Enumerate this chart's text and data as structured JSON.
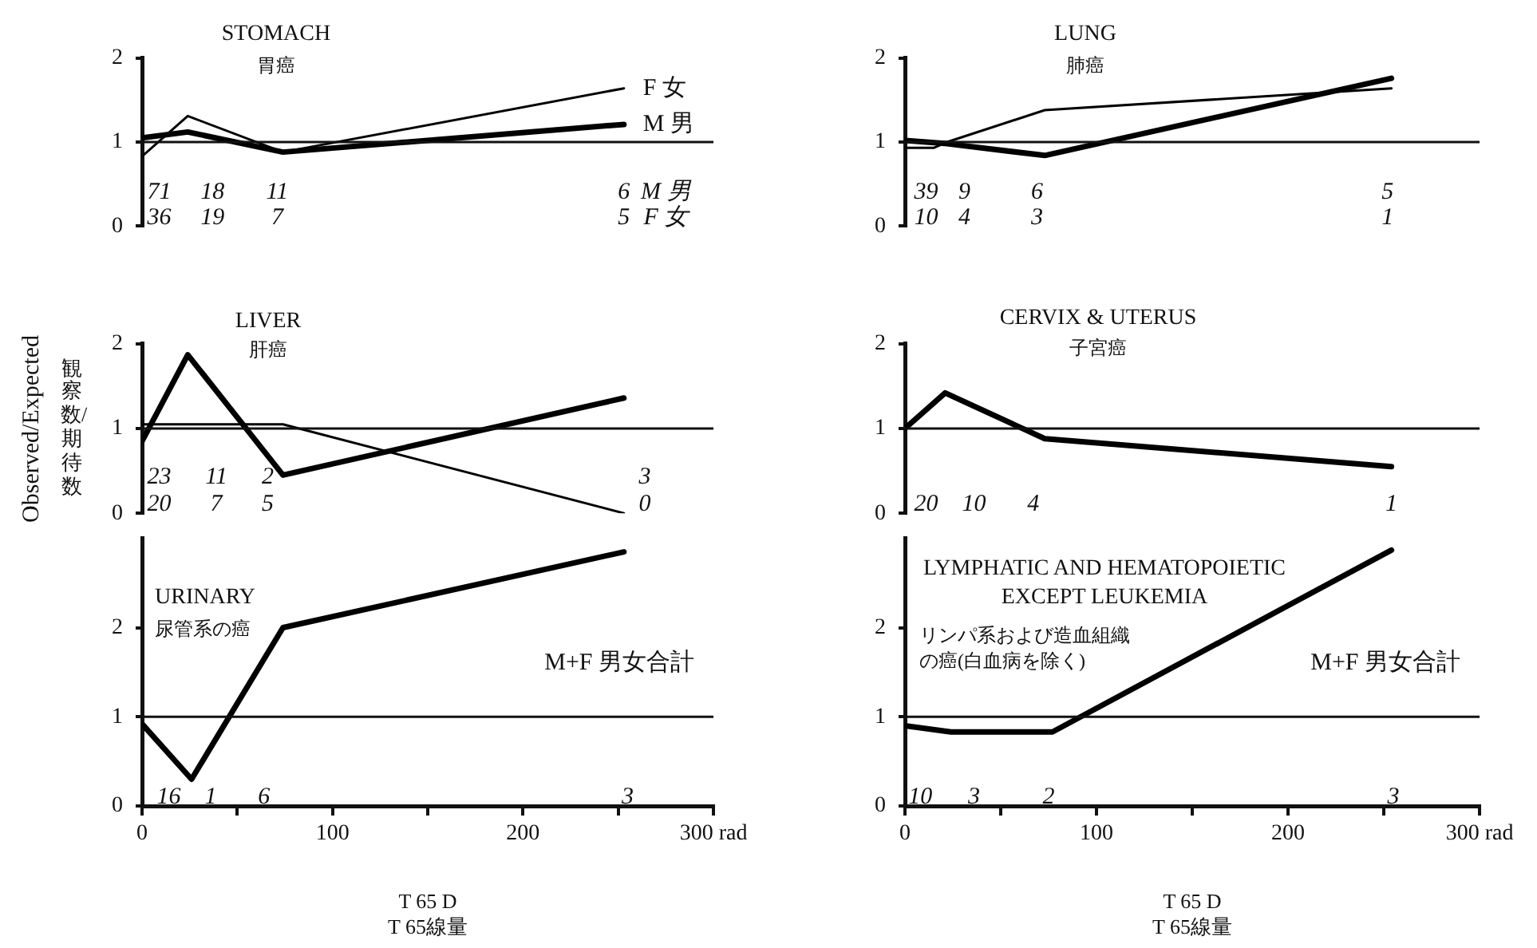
{
  "chart_data": [
    {
      "type": "line",
      "title": "STOMACH",
      "subtitle": "胃癌",
      "xlim": [
        0,
        300
      ],
      "ylim": [
        0,
        2
      ],
      "yticks": [
        0,
        1,
        2
      ],
      "tick_labels": "y",
      "ref_lines": [
        {
          "axis": "y",
          "value": 1
        }
      ],
      "series": [
        {
          "name": "M 男",
          "color": "#000000",
          "x": [
            0,
            24,
            74,
            253
          ],
          "values": [
            1.05,
            1.12,
            0.88,
            1.21
          ]
        },
        {
          "name": "F 女",
          "color": "#000000",
          "x": [
            0,
            24,
            74,
            253
          ],
          "values": [
            0.83,
            1.31,
            0.88,
            1.64
          ]
        }
      ],
      "annotations": [
        "71",
        "18",
        "11",
        "6",
        "M 男",
        "36",
        "19",
        "7",
        "5",
        "F 女"
      ]
    },
    {
      "type": "line",
      "title": "LUNG",
      "subtitle": "肺癌",
      "xlim": [
        0,
        300
      ],
      "ylim": [
        0,
        2
      ],
      "yticks": [
        0,
        1,
        2
      ],
      "tick_labels": "y",
      "ref_lines": [
        {
          "axis": "y",
          "value": 1
        }
      ],
      "series": [
        {
          "color": "#000000",
          "x": [
            0,
            22,
            73,
            254
          ],
          "values": [
            1.02,
            0.98,
            0.84,
            1.76
          ]
        },
        {
          "color": "#000000",
          "x": [
            0,
            15,
            22,
            73,
            254
          ],
          "values": [
            0.93,
            0.93,
            1.0,
            1.38,
            1.64
          ]
        }
      ],
      "annotations": [
        "39",
        "9",
        "6",
        "5",
        "10",
        "4",
        "3",
        "1"
      ]
    },
    {
      "type": "line",
      "title": "LIVER",
      "subtitle": "肝癌",
      "ylabel": "Observed/Expected\n観察数/期待数",
      "xlim": [
        0,
        300
      ],
      "ylim": [
        0,
        2
      ],
      "yticks": [
        0,
        1,
        2
      ],
      "tick_labels": "y",
      "ref_lines": [
        {
          "axis": "y",
          "value": 1
        }
      ],
      "series": [
        {
          "color": "#000000",
          "x": [
            0,
            24,
            74,
            253
          ],
          "values": [
            0.85,
            1.87,
            0.45,
            1.36
          ]
        },
        {
          "color": "#000000",
          "x": [
            0,
            74,
            253
          ],
          "values": [
            1.05,
            1.05,
            0
          ]
        }
      ],
      "annotations": [
        "23",
        "11",
        "2",
        "3",
        "20",
        "7",
        "5",
        "0"
      ]
    },
    {
      "type": "line",
      "title": "CERVIX & UTERUS",
      "subtitle": "子宮癌",
      "xlim": [
        0,
        300
      ],
      "ylim": [
        0,
        2
      ],
      "yticks": [
        0,
        1,
        2
      ],
      "tick_labels": "y",
      "ref_lines": [
        {
          "axis": "y",
          "value": 1
        }
      ],
      "series": [
        {
          "color": "#000000",
          "x": [
            0,
            21,
            73,
            254
          ],
          "values": [
            1.0,
            1.42,
            0.88,
            0.55
          ]
        }
      ],
      "annotations": [
        "20",
        "10",
        "4",
        "1"
      ]
    },
    {
      "type": "line",
      "title": "URINARY",
      "subtitle": "尿管系の癌",
      "xlabel": "T 65 D\nT 65線量",
      "xlim": [
        0,
        300
      ],
      "xticks": [
        0,
        {
          "value": 50,
          "label": null
        },
        100,
        {
          "value": 150,
          "label": null
        },
        200,
        {
          "value": 250,
          "label": null
        },
        {
          "value": 300,
          "label": "300 rad"
        }
      ],
      "ylim": [
        0,
        3
      ],
      "yticks": [
        0,
        1,
        2
      ],
      "ref_lines": [
        {
          "axis": "y",
          "value": 1
        }
      ],
      "series": [
        {
          "color": "#000000",
          "x": [
            0,
            26,
            74,
            253
          ],
          "values": [
            0.92,
            0.3,
            2.0,
            2.85
          ]
        }
      ],
      "annotations": [
        "M+F 男女合計",
        "16",
        "1",
        "6",
        "3"
      ]
    },
    {
      "type": "line",
      "title": "LYMPHATIC AND HEMATOPOIETIC\nEXCEPT LEUKEMIA",
      "subtitle": "リンパ系および造血組織の癌(白血病を除く)",
      "xlabel": "T 65 D\nT 65線量",
      "xlim": [
        0,
        300
      ],
      "xticks": [
        0,
        {
          "value": 50,
          "label": null
        },
        100,
        {
          "value": 150,
          "label": null
        },
        200,
        {
          "value": 250,
          "label": null
        },
        {
          "value": 300,
          "label": "300 rad"
        }
      ],
      "ylim": [
        0,
        3
      ],
      "yticks": [
        0,
        1,
        2
      ],
      "ref_lines": [
        {
          "axis": "y",
          "value": 1
        }
      ],
      "series": [
        {
          "color": "#000000",
          "x": [
            0,
            24,
            77,
            254
          ],
          "values": [
            0.9,
            0.83,
            0.83,
            2.87
          ]
        }
      ],
      "annotations": [
        "M+F 男女合計",
        "10",
        "3",
        "2",
        "3"
      ]
    }
  ]
}
